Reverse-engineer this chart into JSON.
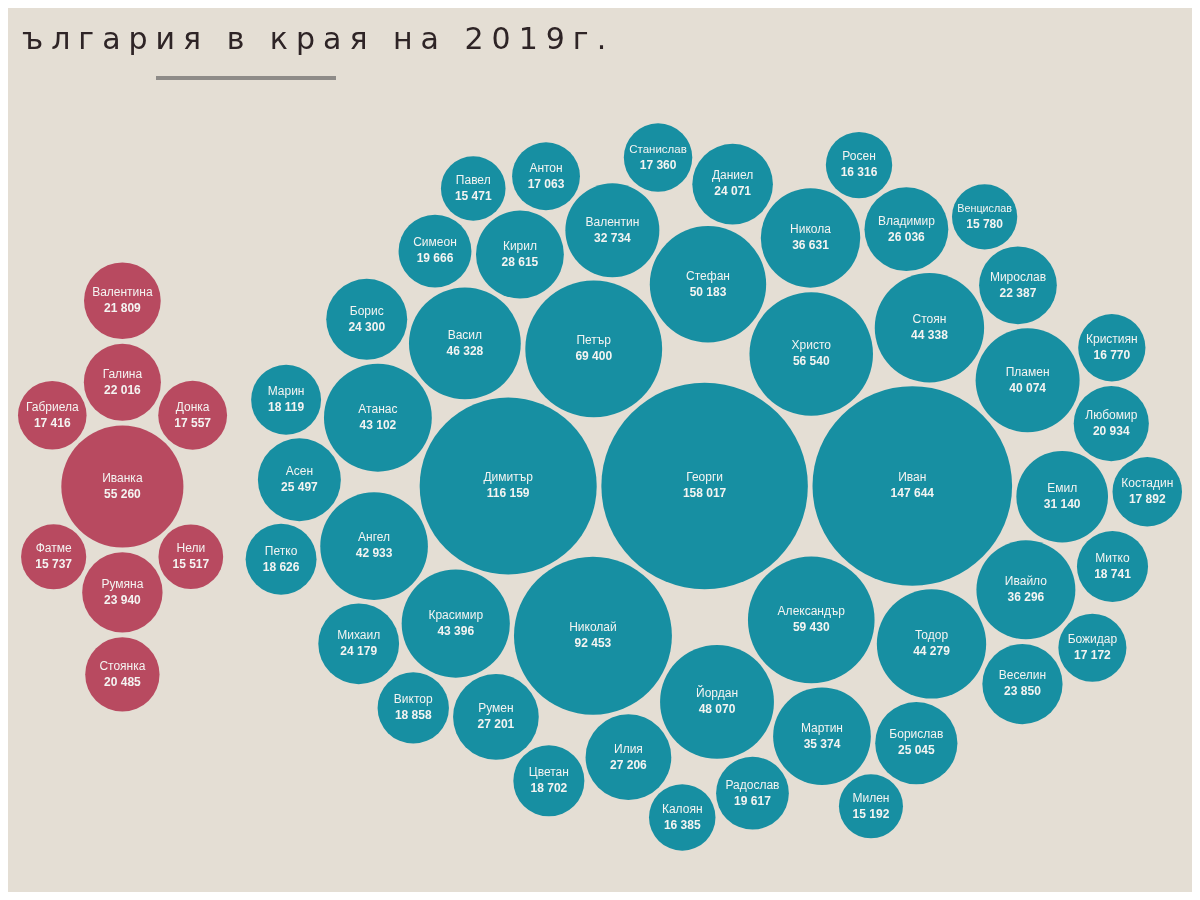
{
  "chart_data": {
    "type": "other",
    "title": "ългария в края на 2019г.",
    "categories": [
      "Румяна",
      "Габриела",
      "Галина",
      "Нели",
      "Стоянка",
      "Донка",
      "Валентина",
      "Фатме",
      "Иванка",
      "Петър",
      "Пламен",
      "Симеон",
      "Александър",
      "Борислав",
      "Румен",
      "Тодор",
      "Венцислав",
      "Васил",
      "Петко",
      "Атанас",
      "Илия",
      "Милен",
      "Михаил",
      "Даниел",
      "Иван",
      "Мирослав",
      "Митко",
      "Марин",
      "Цветан",
      "Георги",
      "Владимир",
      "Николай",
      "Ивайло",
      "Стефан",
      "Стоян",
      "Павел",
      "Росен",
      "Борис",
      "Виктор",
      "Мартин",
      "Радослав",
      "Димитър",
      "Валентин",
      "Емил",
      "Никола",
      "Любомир",
      "Красимир",
      "Кристиян",
      "Йордан",
      "Божидар",
      "Калоян",
      "Асен",
      "Веселин",
      "Антон",
      "Христо",
      "Ангел",
      "Кирил",
      "Костадин",
      "Станислав"
    ],
    "values": [
      23940,
      17416,
      22016,
      15517,
      20485,
      17557,
      21809,
      15737,
      55260,
      69400,
      40074,
      19666,
      59430,
      25045,
      27201,
      44279,
      15780,
      46328,
      18626,
      43102,
      27206,
      15192,
      24179,
      24071,
      147644,
      22387,
      18741,
      18119,
      18702,
      158017,
      26036,
      92453,
      36296,
      50183,
      44338,
      15471,
      16316,
      24300,
      18858,
      35374,
      19617,
      116159,
      32734,
      31140,
      36631,
      20934,
      43396,
      16770,
      48070,
      17172,
      16385,
      25497,
      23850,
      17063,
      56540,
      42933,
      28615,
      17892,
      17360
    ],
    "value_labels": [
      "23 940",
      "17 416",
      "22 016",
      "15 517",
      "20 485",
      "17 557",
      "21 809",
      "15 737",
      "55 260",
      "69 400",
      "40 074",
      "19 666",
      "59 430",
      "25 045",
      "27 201",
      "44 279",
      "15 780",
      "46 328",
      "18 626",
      "43 102",
      "27 206",
      "15 192",
      "24 179",
      "24 071",
      "147 644",
      "22 387",
      "18 741",
      "18 119",
      "18 702",
      "158 017",
      "26 036",
      "92 453",
      "36 296",
      "50 183",
      "44 338",
      "15 471",
      "16 316",
      "24 300",
      "18 858",
      "35 374",
      "19 617",
      "116 159",
      "32 734",
      "31 140",
      "36 631",
      "20 934",
      "43 396",
      "16 770",
      "48 070",
      "17 172",
      "16 385",
      "25 497",
      "23 850",
      "17 063",
      "56 540",
      "42 933",
      "28 615",
      "17 892",
      "17 360"
    ],
    "colors": [
      "#b84a60",
      "#b84a60",
      "#b84a60",
      "#b84a60",
      "#b84a60",
      "#b84a60",
      "#b84a60",
      "#b84a60",
      "#b84a60",
      "#178fa2",
      "#178fa2",
      "#178fa2",
      "#178fa2",
      "#178fa2",
      "#178fa2",
      "#178fa2",
      "#178fa2",
      "#178fa2",
      "#178fa2",
      "#178fa2",
      "#178fa2",
      "#178fa2",
      "#178fa2",
      "#178fa2",
      "#178fa2",
      "#178fa2",
      "#178fa2",
      "#178fa2",
      "#178fa2",
      "#178fa2",
      "#178fa2",
      "#178fa2",
      "#178fa2",
      "#178fa2",
      "#178fa2",
      "#178fa2",
      "#178fa2",
      "#178fa2",
      "#178fa2",
      "#178fa2",
      "#178fa2",
      "#178fa2",
      "#178fa2",
      "#178fa2",
      "#178fa2",
      "#178fa2",
      "#178fa2",
      "#178fa2",
      "#178fa2",
      "#178fa2",
      "#178fa2",
      "#178fa2",
      "#178fa2",
      "#178fa2",
      "#178fa2",
      "#178fa2",
      "#178fa2",
      "#178fa2",
      "#178fa2"
    ]
  }
}
